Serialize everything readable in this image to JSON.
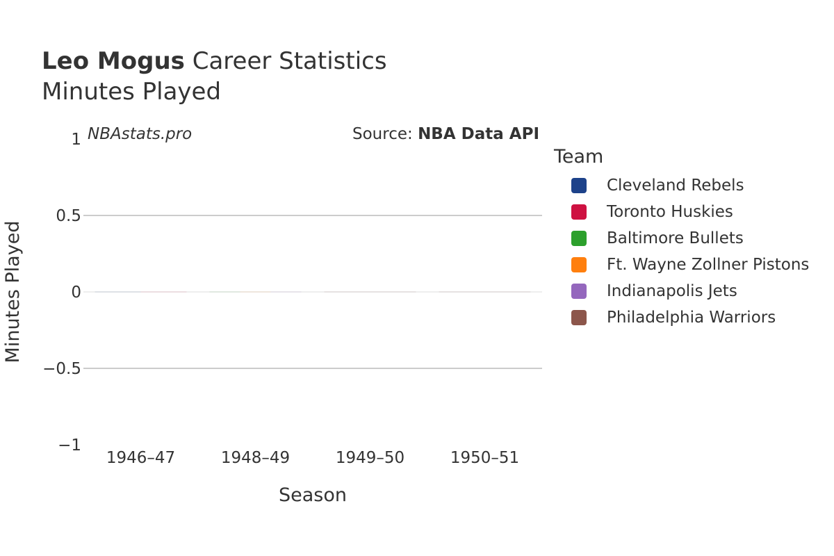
{
  "header": {
    "player": "Leo Mogus",
    "title_rest": " Career Statistics",
    "subtitle": "Minutes Played"
  },
  "watermark": "NBAstats.pro",
  "source": {
    "prefix": "Source: ",
    "name": "NBA Data API"
  },
  "legend": {
    "title": "Team",
    "items": [
      {
        "label": "Cleveland Rebels",
        "color": "#1d428a"
      },
      {
        "label": "Toronto Huskies",
        "color": "#ce1141"
      },
      {
        "label": "Baltimore Bullets",
        "color": "#2ca02c"
      },
      {
        "label": "Ft. Wayne Zollner Pistons",
        "color": "#ff7f0e"
      },
      {
        "label": "Indianapolis Jets",
        "color": "#9467bd"
      },
      {
        "label": "Philadelphia Warriors",
        "color": "#8c564b"
      }
    ]
  },
  "chart_data": {
    "type": "bar",
    "title": "Leo Mogus Career Statistics",
    "subtitle": "Minutes Played",
    "xlabel": "Season",
    "ylabel": "Minutes Played",
    "categories": [
      "1946–47",
      "1948–49",
      "1949–50",
      "1950–51"
    ],
    "ylim": [
      -1,
      1
    ],
    "yticks": [
      -1,
      -0.5,
      0,
      0.5,
      1
    ],
    "ytick_labels": [
      "−1",
      "−0.5",
      "0",
      "0.5",
      "1"
    ],
    "grid": true,
    "legend_position": "right",
    "series": [
      {
        "name": "Cleveland Rebels",
        "values": [
          0,
          null,
          null,
          null
        ]
      },
      {
        "name": "Toronto Huskies",
        "values": [
          0,
          null,
          null,
          null
        ]
      },
      {
        "name": "Baltimore Bullets",
        "values": [
          null,
          0,
          null,
          null
        ]
      },
      {
        "name": "Ft. Wayne Zollner Pistons",
        "values": [
          null,
          0,
          null,
          null
        ]
      },
      {
        "name": "Indianapolis Jets",
        "values": [
          null,
          0,
          null,
          null
        ]
      },
      {
        "name": "Philadelphia Warriors",
        "values": [
          null,
          null,
          0,
          0
        ]
      }
    ]
  }
}
